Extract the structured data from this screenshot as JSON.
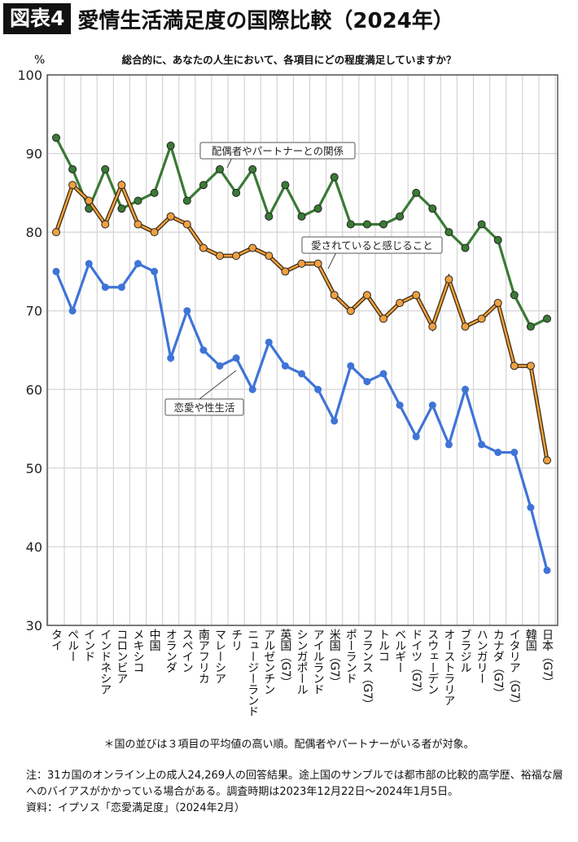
{
  "header": {
    "badge": "図表4",
    "title": "愛情生活満足度の国際比較（2024年）"
  },
  "chart_data": {
    "type": "line",
    "title": "総合的に、あなたの人生において、各項目にどの程度満足していますか？",
    "ylabel": "%",
    "ylim": [
      30,
      100
    ],
    "yticks": [
      30,
      40,
      50,
      60,
      70,
      80,
      90,
      100
    ],
    "grid": true,
    "categories": [
      "タイ",
      "ペルー",
      "インド",
      "インドネシア",
      "コロンビア",
      "メキシコ",
      "中国",
      "オランダ",
      "スペイン",
      "南アフリカ",
      "マレーシア",
      "チリ",
      "ニュージーランド",
      "アルゼンチン",
      "英国（G7）",
      "シンガポール",
      "アイルランド",
      "米国（G7）",
      "ポーランド",
      "フランス（G7）",
      "トルコ",
      "ベルギー",
      "ドイツ（G7）",
      "スウェーデン",
      "オーストラリア",
      "ブラジル",
      "ハンガリー",
      "カナダ（G7）",
      "イタリア（G7）",
      "韓国",
      "日本（G7）"
    ],
    "series": [
      {
        "name": "配偶者やパートナーとの関係",
        "color": "#3a7a35",
        "values": [
          92,
          88,
          83,
          88,
          83,
          84,
          85,
          91,
          84,
          86,
          88,
          85,
          88,
          82,
          86,
          82,
          83,
          87,
          81,
          81,
          81,
          82,
          85,
          83,
          80,
          78,
          81,
          79,
          72,
          68,
          69
        ]
      },
      {
        "name": "愛されていると感じること",
        "color": "#f0a040",
        "values": [
          80,
          86,
          84,
          81,
          86,
          81,
          80,
          82,
          81,
          78,
          77,
          77,
          78,
          77,
          75,
          76,
          76,
          72,
          70,
          72,
          69,
          71,
          72,
          68,
          74,
          68,
          69,
          71,
          63,
          63,
          51
        ]
      },
      {
        "name": "恋愛や性生活",
        "color": "#3f74d6",
        "values": [
          75,
          70,
          76,
          73,
          73,
          76,
          75,
          64,
          70,
          65,
          63,
          64,
          60,
          66,
          63,
          62,
          60,
          56,
          63,
          61,
          62,
          58,
          54,
          58,
          53,
          60,
          53,
          52,
          52,
          45,
          37
        ]
      }
    ]
  },
  "footnote": "＊国の並びは３項目の平均値の高い順。配偶者やパートナーがいる者が対象。",
  "notes": [
    "注：31カ国のオンライン上の成人24,269人の回答結果。途上国のサンプルでは都市部の比較的高学歴、裕福な層へのバイアスがかかっている場合がある。調査時期は2023年12月22日〜2024年1月5日。",
    "資料：イプソス「恋愛満足度」（2024年2月）"
  ]
}
